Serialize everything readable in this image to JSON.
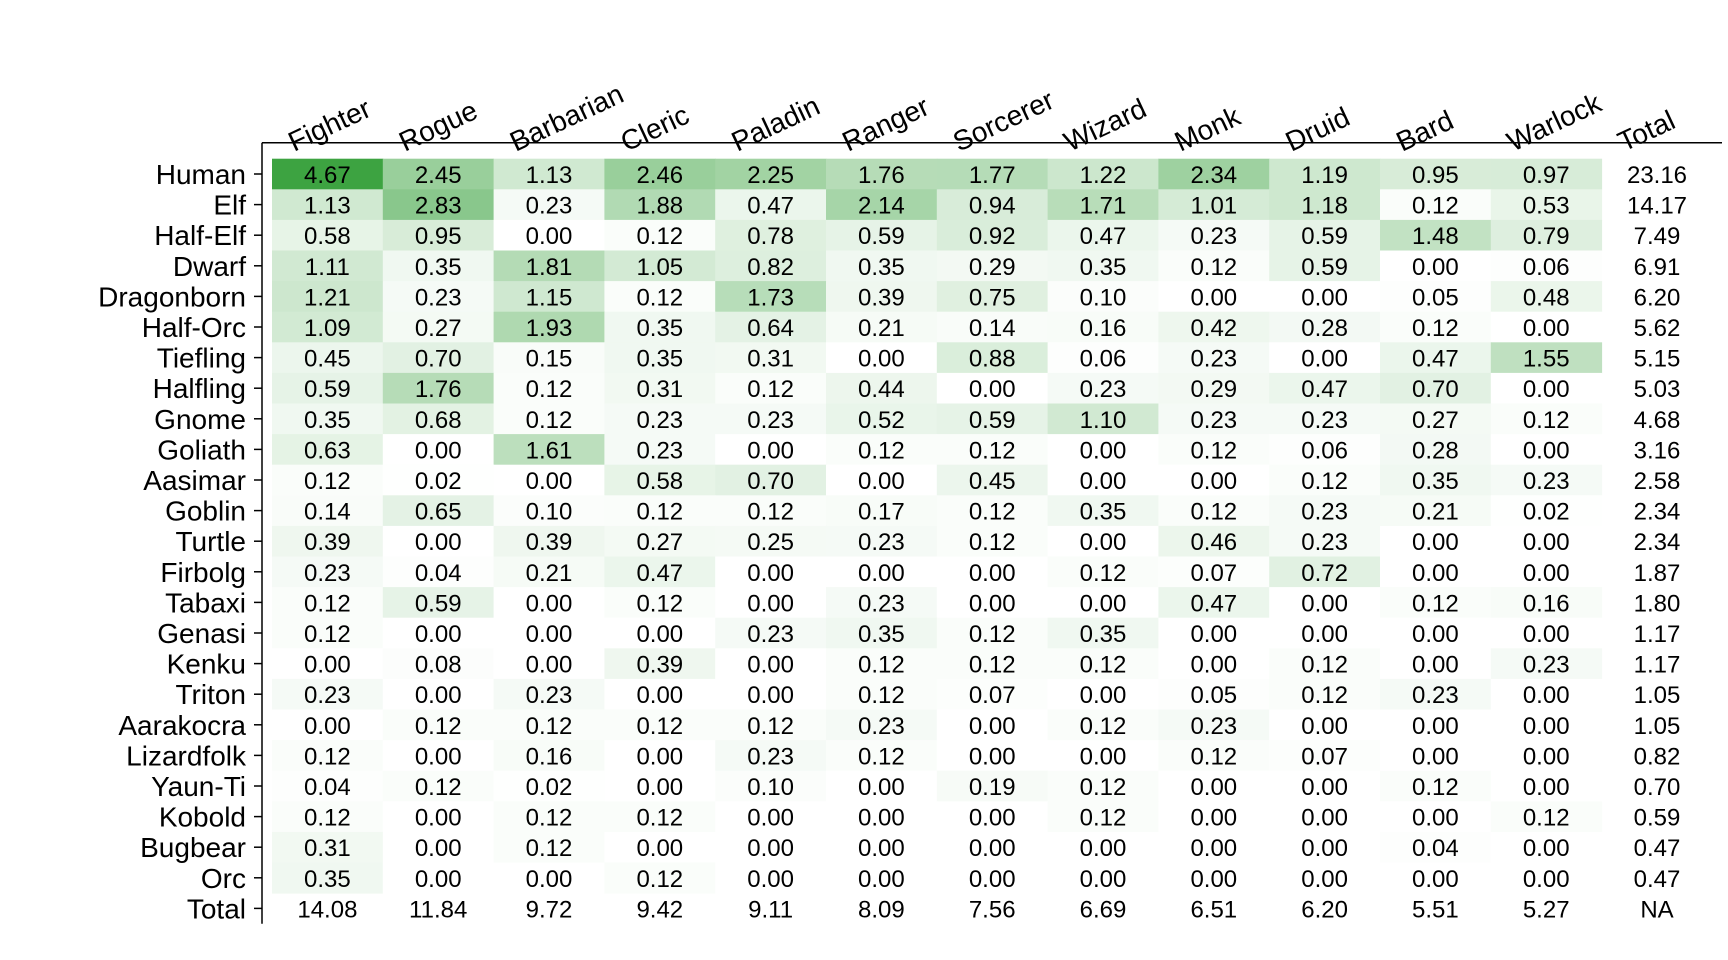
{
  "chart_data": {
    "type": "heatmap",
    "columns": [
      "Fighter",
      "Rogue",
      "Barbarian",
      "Cleric",
      "Paladin",
      "Ranger",
      "Sorcerer",
      "Wizard",
      "Monk",
      "Druid",
      "Bard",
      "Warlock",
      "Total"
    ],
    "rows": [
      "Human",
      "Elf",
      "Half-Elf",
      "Dwarf",
      "Dragonborn",
      "Half-Orc",
      "Tiefling",
      "Halfling",
      "Gnome",
      "Goliath",
      "Aasimar",
      "Goblin",
      "Turtle",
      "Firbolg",
      "Tabaxi",
      "Genasi",
      "Kenku",
      "Triton",
      "Aarakocra",
      "Lizardfolk",
      "Yaun-Ti",
      "Kobold",
      "Bugbear",
      "Orc",
      "Total"
    ],
    "values": [
      [
        "4.67",
        "2.45",
        "1.13",
        "2.46",
        "2.25",
        "1.76",
        "1.77",
        "1.22",
        "2.34",
        "1.19",
        "0.95",
        "0.97",
        "23.16"
      ],
      [
        "1.13",
        "2.83",
        "0.23",
        "1.88",
        "0.47",
        "2.14",
        "0.94",
        "1.71",
        "1.01",
        "1.18",
        "0.12",
        "0.53",
        "14.17"
      ],
      [
        "0.58",
        "0.95",
        "0.00",
        "0.12",
        "0.78",
        "0.59",
        "0.92",
        "0.47",
        "0.23",
        "0.59",
        "1.48",
        "0.79",
        "7.49"
      ],
      [
        "1.11",
        "0.35",
        "1.81",
        "1.05",
        "0.82",
        "0.35",
        "0.29",
        "0.35",
        "0.12",
        "0.59",
        "0.00",
        "0.06",
        "6.91"
      ],
      [
        "1.21",
        "0.23",
        "1.15",
        "0.12",
        "1.73",
        "0.39",
        "0.75",
        "0.10",
        "0.00",
        "0.00",
        "0.05",
        "0.48",
        "6.20"
      ],
      [
        "1.09",
        "0.27",
        "1.93",
        "0.35",
        "0.64",
        "0.21",
        "0.14",
        "0.16",
        "0.42",
        "0.28",
        "0.12",
        "0.00",
        "5.62"
      ],
      [
        "0.45",
        "0.70",
        "0.15",
        "0.35",
        "0.31",
        "0.00",
        "0.88",
        "0.06",
        "0.23",
        "0.00",
        "0.47",
        "1.55",
        "5.15"
      ],
      [
        "0.59",
        "1.76",
        "0.12",
        "0.31",
        "0.12",
        "0.44",
        "0.00",
        "0.23",
        "0.29",
        "0.47",
        "0.70",
        "0.00",
        "5.03"
      ],
      [
        "0.35",
        "0.68",
        "0.12",
        "0.23",
        "0.23",
        "0.52",
        "0.59",
        "1.10",
        "0.23",
        "0.23",
        "0.27",
        "0.12",
        "4.68"
      ],
      [
        "0.63",
        "0.00",
        "1.61",
        "0.23",
        "0.00",
        "0.12",
        "0.12",
        "0.00",
        "0.12",
        "0.06",
        "0.28",
        "0.00",
        "3.16"
      ],
      [
        "0.12",
        "0.02",
        "0.00",
        "0.58",
        "0.70",
        "0.00",
        "0.45",
        "0.00",
        "0.00",
        "0.12",
        "0.35",
        "0.23",
        "2.58"
      ],
      [
        "0.14",
        "0.65",
        "0.10",
        "0.12",
        "0.12",
        "0.17",
        "0.12",
        "0.35",
        "0.12",
        "0.23",
        "0.21",
        "0.02",
        "2.34"
      ],
      [
        "0.39",
        "0.00",
        "0.39",
        "0.27",
        "0.25",
        "0.23",
        "0.12",
        "0.00",
        "0.46",
        "0.23",
        "0.00",
        "0.00",
        "2.34"
      ],
      [
        "0.23",
        "0.04",
        "0.21",
        "0.47",
        "0.00",
        "0.00",
        "0.00",
        "0.12",
        "0.07",
        "0.72",
        "0.00",
        "0.00",
        "1.87"
      ],
      [
        "0.12",
        "0.59",
        "0.00",
        "0.12",
        "0.00",
        "0.23",
        "0.00",
        "0.00",
        "0.47",
        "0.00",
        "0.12",
        "0.16",
        "1.80"
      ],
      [
        "0.12",
        "0.00",
        "0.00",
        "0.00",
        "0.23",
        "0.35",
        "0.12",
        "0.35",
        "0.00",
        "0.00",
        "0.00",
        "0.00",
        "1.17"
      ],
      [
        "0.00",
        "0.08",
        "0.00",
        "0.39",
        "0.00",
        "0.12",
        "0.12",
        "0.12",
        "0.00",
        "0.12",
        "0.00",
        "0.23",
        "1.17"
      ],
      [
        "0.23",
        "0.00",
        "0.23",
        "0.00",
        "0.00",
        "0.12",
        "0.07",
        "0.00",
        "0.05",
        "0.12",
        "0.23",
        "0.00",
        "1.05"
      ],
      [
        "0.00",
        "0.12",
        "0.12",
        "0.12",
        "0.12",
        "0.23",
        "0.00",
        "0.12",
        "0.23",
        "0.00",
        "0.00",
        "0.00",
        "1.05"
      ],
      [
        "0.12",
        "0.00",
        "0.16",
        "0.00",
        "0.23",
        "0.12",
        "0.00",
        "0.00",
        "0.12",
        "0.07",
        "0.00",
        "0.00",
        "0.82"
      ],
      [
        "0.04",
        "0.12",
        "0.02",
        "0.00",
        "0.10",
        "0.00",
        "0.19",
        "0.12",
        "0.00",
        "0.00",
        "0.12",
        "0.00",
        "0.70"
      ],
      [
        "0.12",
        "0.00",
        "0.12",
        "0.12",
        "0.00",
        "0.00",
        "0.00",
        "0.12",
        "0.00",
        "0.00",
        "0.00",
        "0.12",
        "0.59"
      ],
      [
        "0.31",
        "0.00",
        "0.12",
        "0.00",
        "0.00",
        "0.00",
        "0.00",
        "0.00",
        "0.00",
        "0.00",
        "0.04",
        "0.00",
        "0.47"
      ],
      [
        "0.35",
        "0.00",
        "0.00",
        "0.12",
        "0.00",
        "0.00",
        "0.00",
        "0.00",
        "0.00",
        "0.00",
        "0.00",
        "0.00",
        "0.47"
      ],
      [
        "14.08",
        "11.84",
        "9.72",
        "9.42",
        "9.11",
        "8.09",
        "7.56",
        "6.69",
        "6.51",
        "6.20",
        "5.51",
        "5.27",
        "NA"
      ]
    ],
    "shaded_columns": 12,
    "shaded_rows": 24,
    "color_scale": {
      "low": "#ffffff",
      "high": "#3da341"
    },
    "scale_max": 4.67,
    "grid": false,
    "legend": "none"
  }
}
